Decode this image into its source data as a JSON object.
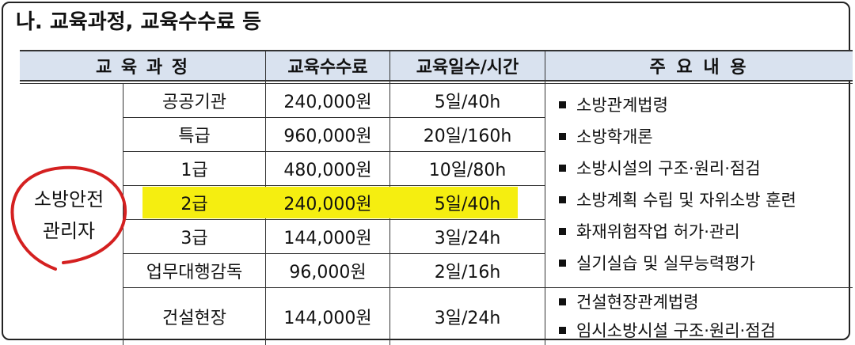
{
  "section_title": "나. 교육과정, 교육수수료 등",
  "headers": {
    "course": "교 육 과 정",
    "fee": "교육수수료",
    "duration": "교육일수/시간",
    "content": "주 요 내 용"
  },
  "group_label_line1": "소방안전",
  "group_label_line2": "관리자",
  "rows": [
    {
      "course": "공공기관",
      "fee": "240,000원",
      "duration": "5일/40h"
    },
    {
      "course": "특급",
      "fee": "960,000원",
      "duration": "20일/160h"
    },
    {
      "course": "1급",
      "fee": "480,000원",
      "duration": "10일/80h"
    },
    {
      "course": "2급",
      "fee": "240,000원",
      "duration": "5일/40h"
    },
    {
      "course": "3급",
      "fee": "144,000원",
      "duration": "3일/24h"
    },
    {
      "course": "업무대행감독",
      "fee": "96,000원",
      "duration": "2일/16h"
    },
    {
      "course": "건설현장",
      "fee": "144,000원",
      "duration": "3일/24h"
    }
  ],
  "content_main": [
    "소방관계법령",
    "소방학개론",
    "소방시설의 구조·원리·점검",
    "소방계획 수립 및 자위소방 훈련",
    "화재위험작업 허가·관리",
    "실기실습 및 실무능력평가"
  ],
  "content_construction": [
    "건설현장관계법령",
    "임시소방시설 구조·원리·점검"
  ],
  "highlight_color": "#f5ee10",
  "annotation_color": "#d42020"
}
